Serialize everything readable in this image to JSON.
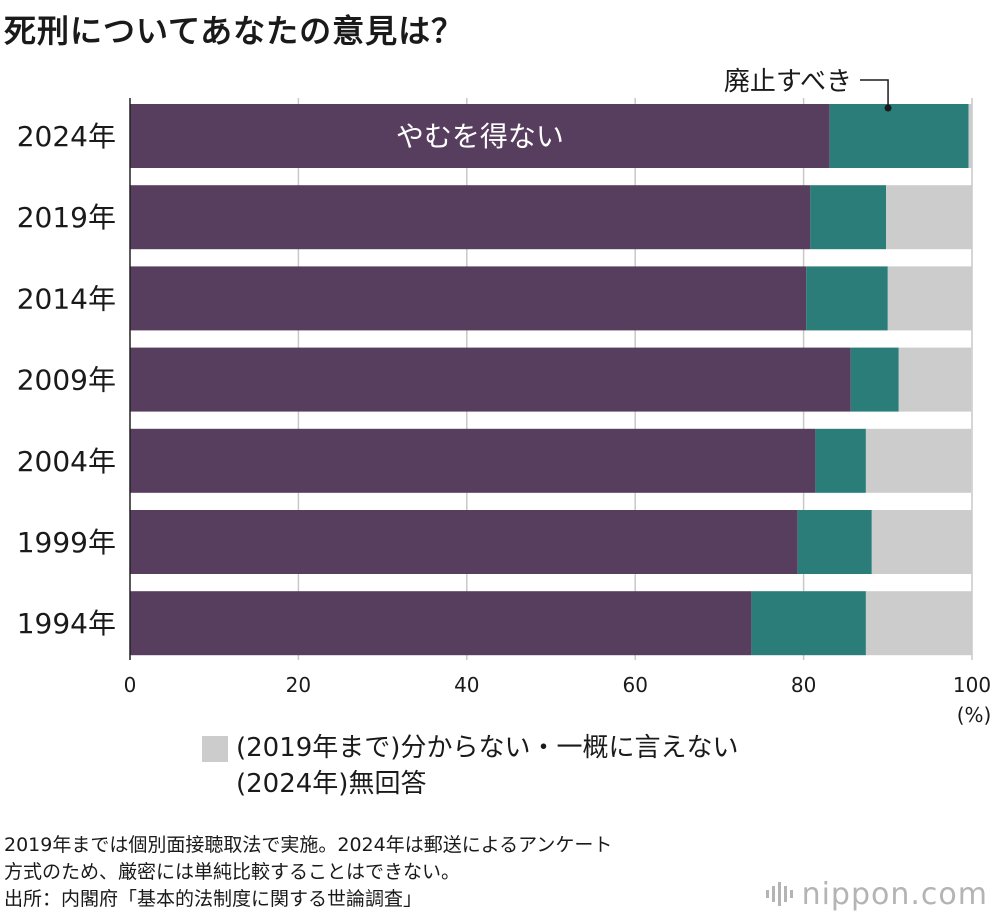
{
  "title": "死刑についてあなたの意見は？",
  "chart_data": {
    "type": "bar",
    "orientation": "horizontal",
    "stacked": true,
    "categories": [
      "2024年",
      "2019年",
      "2014年",
      "2009年",
      "2004年",
      "1999年",
      "1994年"
    ],
    "series": [
      {
        "name": "やむを得ない",
        "color": "#573e5e",
        "values": [
          83.1,
          80.8,
          80.3,
          85.6,
          81.4,
          79.3,
          73.8
        ]
      },
      {
        "name": "廃止すべき",
        "color": "#2a7d78",
        "values": [
          16.5,
          9.0,
          9.7,
          5.7,
          6.0,
          8.8,
          13.6
        ]
      },
      {
        "name": "(2019年まで)分からない・一概に言えない (2024年)無回答",
        "color": "#cccccc",
        "values": [
          0.4,
          10.2,
          10.0,
          8.6,
          12.5,
          11.9,
          12.6
        ]
      }
    ],
    "xlim": [
      0,
      100
    ],
    "xticks": [
      "0",
      "20",
      "40",
      "60",
      "80",
      "100"
    ],
    "unit_label": "(%)",
    "grid": true
  },
  "legend": {
    "color": "#cccccc",
    "line1": "(2019年まで)分からない・一概に言えない",
    "line2": "(2024年)無回答"
  },
  "notes": [
    "2019年までは個別面接聴取法で実施。2024年は郵送によるアンケート",
    "方式のため、厳密には単純比較することはできない。",
    "出所：内閣府「基本的法制度に関する世論調査」"
  ],
  "brand": {
    "name": "nippon",
    "suffix": ".com"
  }
}
